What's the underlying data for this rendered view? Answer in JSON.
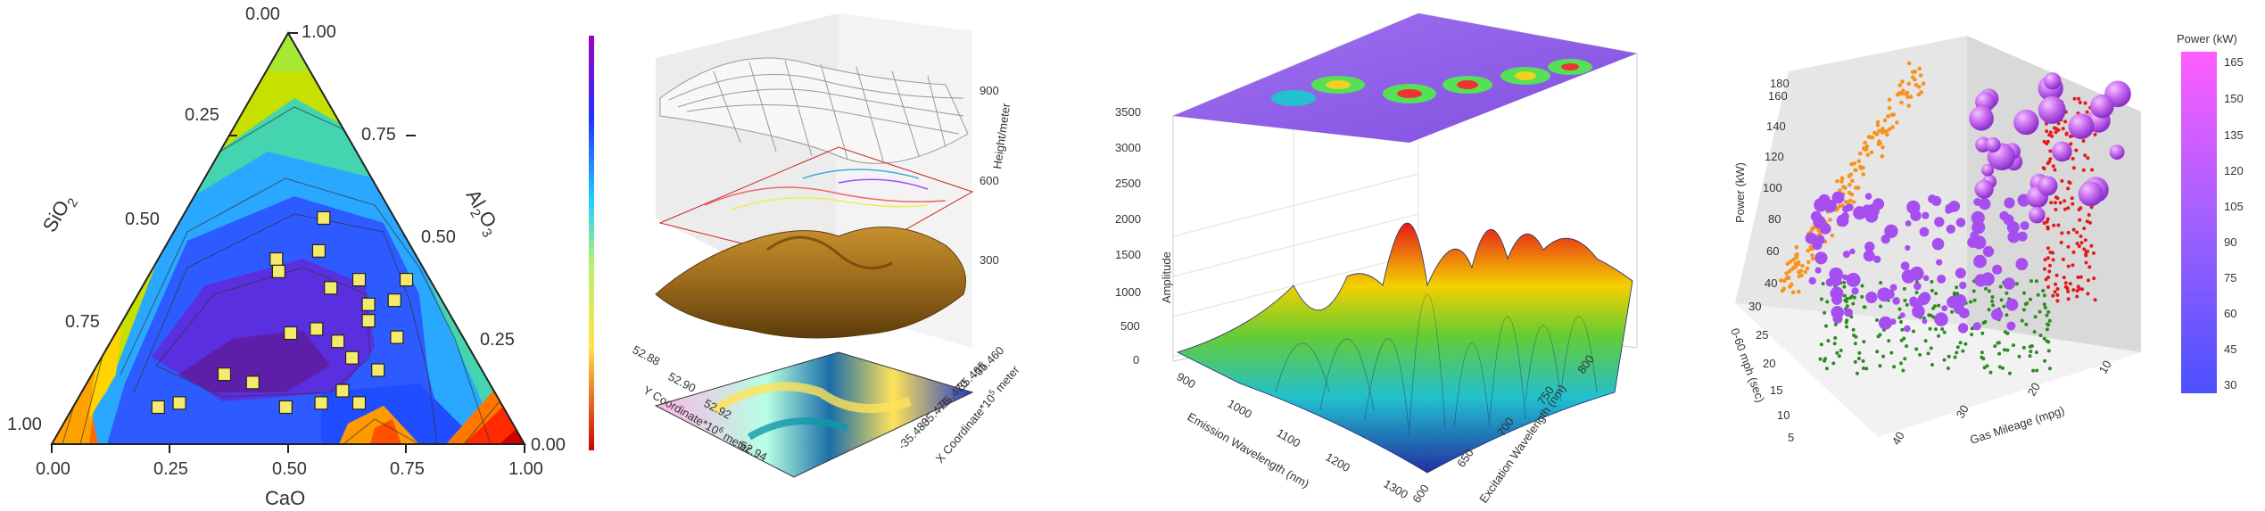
{
  "palette": {
    "accent": "#f5ea6b",
    "surface_brown": "#9a6a1a",
    "orange": "#f7931e",
    "purple": "#a64ef0",
    "red": "#e3191c",
    "green": "#2e8b22",
    "magenta": "#ff5cff",
    "blue": "#4b50ff"
  },
  "chart_data": [
    {
      "type": "ternary",
      "axes": {
        "a": {
          "label": "SiO2",
          "label_main": "SiO",
          "label_sub": "2"
        },
        "b": {
          "label": "Al2O3",
          "label_main": "Al",
          "label_sub": "2",
          "label_tail": "O",
          "label_sub2": "3"
        },
        "c": {
          "label": "CaO"
        }
      },
      "ticks": {
        "bottom": [
          "0.00",
          "0.25",
          "0.50",
          "0.75",
          "1.00"
        ],
        "left": [
          "0.00",
          "0.25",
          "0.50",
          "0.75",
          "1.00"
        ],
        "right": [
          "1.00",
          "0.75",
          "0.50",
          "0.25",
          "0.00"
        ]
      },
      "points": [
        {
          "c": 0.5,
          "a": 0.16,
          "b": 0.34
        },
        {
          "c": 0.55,
          "a": 0.1,
          "b": 0.35
        },
        {
          "c": 0.6,
          "a": 0.14,
          "b": 0.26
        },
        {
          "c": 0.55,
          "a": 0.05,
          "b": 0.4
        },
        {
          "c": 0.37,
          "a": 0.36,
          "b": 0.27
        },
        {
          "c": 0.42,
          "a": 0.3,
          "b": 0.28
        },
        {
          "c": 0.48,
          "a": 0.27,
          "b": 0.25
        },
        {
          "c": 0.53,
          "a": 0.26,
          "b": 0.21
        },
        {
          "c": 0.6,
          "a": 0.3,
          "b": 0.1
        },
        {
          "c": 0.52,
          "a": 0.38,
          "b": 0.1
        },
        {
          "c": 0.45,
          "a": 0.46,
          "b": 0.09
        },
        {
          "c": 0.35,
          "a": 0.5,
          "b": 0.15
        },
        {
          "c": 0.22,
          "a": 0.68,
          "b": 0.1
        },
        {
          "c": 0.18,
          "a": 0.73,
          "b": 0.09
        },
        {
          "c": 0.28,
          "a": 0.55,
          "b": 0.17
        },
        {
          "c": 0.52,
          "a": 0.18,
          "b": 0.3
        },
        {
          "c": 0.4,
          "a": 0.22,
          "b": 0.38
        },
        {
          "c": 0.33,
          "a": 0.2,
          "b": 0.47
        },
        {
          "c": 0.3,
          "a": 0.15,
          "b": 0.55
        },
        {
          "c": 0.6,
          "a": 0.22,
          "b": 0.18
        },
        {
          "c": 0.55,
          "a": 0.32,
          "b": 0.13
        },
        {
          "c": 0.45,
          "a": 0.15,
          "b": 0.4
        },
        {
          "c": 0.25,
          "a": 0.3,
          "b": 0.45
        },
        {
          "c": 0.27,
          "a": 0.31,
          "b": 0.42
        }
      ]
    },
    {
      "type": "3d-surface-contour",
      "xlabel": "Y Coordinate*10",
      "xlabel_sup": "6",
      "xlabel_tail": " meter",
      "ylabel": "X Coordinate*10",
      "ylabel_sup": "5",
      "ylabel_tail": " meter",
      "zlabel": "Height/meter",
      "zticks": [
        "900",
        "600",
        "300"
      ],
      "xticks": [
        "52.88",
        "52.90",
        "52.92",
        "52.94"
      ],
      "yticks": [
        "-35.480",
        "-35.475",
        "-35.470",
        "-35.465",
        "-35.460"
      ],
      "colorbar": [
        "#ff0000",
        "#ffff55",
        "#00cc66",
        "#00aaff",
        "#0033ff",
        "#aa00ff"
      ]
    },
    {
      "type": "3d-surface",
      "xlabel": "Emission Wavelength (nm)",
      "ylabel": "Excitation Wavelength (nm)",
      "zlabel": "Amplitude",
      "zticks": [
        "0",
        "500",
        "1000",
        "1500",
        "2000",
        "2500",
        "3000",
        "3500"
      ],
      "xticks": [
        "900",
        "1000",
        "1100",
        "1200",
        "1300"
      ],
      "yticks": [
        "600",
        "650",
        "700",
        "750",
        "800"
      ]
    },
    {
      "type": "3d-scatter",
      "xlabel": "Gas Mileage (mpg)",
      "ylabel": "0-60 mph (sec)",
      "zlabel": "Power (kW)",
      "zticks": [
        "40",
        "60",
        "80",
        "100",
        "120",
        "140",
        "160",
        "180"
      ],
      "xticks": [
        "10",
        "20",
        "30",
        "40"
      ],
      "yticks": [
        "5",
        "10",
        "15",
        "20",
        "25",
        "30"
      ],
      "colorbar": {
        "title": "Power (kW)",
        "ticks": [
          "165",
          "150",
          "135",
          "120",
          "105",
          "90",
          "75",
          "60",
          "45",
          "30"
        ],
        "min": 30,
        "max": 165
      }
    }
  ]
}
